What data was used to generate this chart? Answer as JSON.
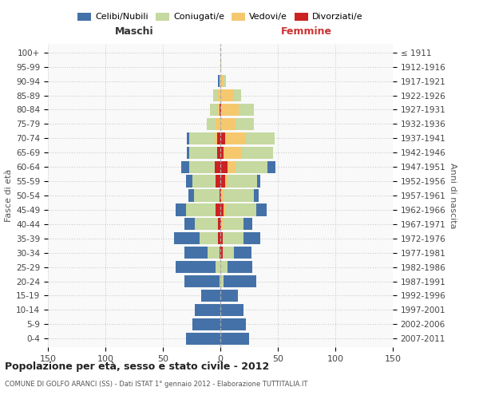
{
  "age_groups": [
    "0-4",
    "5-9",
    "10-14",
    "15-19",
    "20-24",
    "25-29",
    "30-34",
    "35-39",
    "40-44",
    "45-49",
    "50-54",
    "55-59",
    "60-64",
    "65-69",
    "70-74",
    "75-79",
    "80-84",
    "85-89",
    "90-94",
    "95-99",
    "100+"
  ],
  "birth_years": [
    "2007-2011",
    "2002-2006",
    "1997-2001",
    "1992-1996",
    "1987-1991",
    "1982-1986",
    "1977-1981",
    "1972-1976",
    "1967-1971",
    "1962-1966",
    "1957-1961",
    "1952-1956",
    "1947-1951",
    "1942-1946",
    "1937-1941",
    "1932-1936",
    "1927-1931",
    "1922-1926",
    "1917-1921",
    "1912-1916",
    "≤ 1911"
  ],
  "male": {
    "celibi": [
      30,
      24,
      22,
      17,
      30,
      35,
      20,
      22,
      9,
      9,
      5,
      6,
      7,
      2,
      2,
      0,
      0,
      0,
      1,
      0,
      0
    ],
    "coniugati": [
      0,
      0,
      0,
      0,
      1,
      4,
      10,
      16,
      20,
      26,
      22,
      20,
      22,
      24,
      22,
      8,
      6,
      4,
      1,
      0,
      0
    ],
    "vedovi": [
      0,
      0,
      0,
      0,
      0,
      0,
      0,
      0,
      0,
      0,
      0,
      0,
      0,
      0,
      2,
      4,
      2,
      2,
      0,
      0,
      0
    ],
    "divorziati": [
      0,
      0,
      0,
      0,
      0,
      0,
      1,
      2,
      2,
      4,
      1,
      4,
      5,
      3,
      3,
      0,
      1,
      0,
      0,
      0,
      0
    ]
  },
  "female": {
    "nubili": [
      25,
      22,
      20,
      15,
      28,
      22,
      15,
      15,
      8,
      9,
      4,
      3,
      7,
      0,
      0,
      0,
      0,
      0,
      0,
      0,
      0
    ],
    "coniugate": [
      0,
      0,
      0,
      0,
      3,
      6,
      10,
      18,
      18,
      26,
      26,
      26,
      28,
      28,
      25,
      16,
      13,
      7,
      2,
      1,
      0
    ],
    "vedove": [
      0,
      0,
      0,
      0,
      0,
      0,
      0,
      0,
      1,
      2,
      2,
      2,
      7,
      15,
      18,
      13,
      15,
      11,
      3,
      0,
      0
    ],
    "divorziate": [
      0,
      0,
      0,
      0,
      0,
      0,
      2,
      2,
      1,
      3,
      1,
      4,
      6,
      3,
      4,
      0,
      1,
      0,
      0,
      0,
      0
    ]
  },
  "colors": {
    "celibi": "#4472a8",
    "coniugati": "#c5d9a0",
    "vedovi": "#f5c86e",
    "divorziati": "#cc2222"
  },
  "title": "Popolazione per età, sesso e stato civile - 2012",
  "subtitle": "COMUNE DI GOLFO ARANCI (SS) - Dati ISTAT 1° gennaio 2012 - Elaborazione TUTTITALIA.IT",
  "xlim": 150,
  "xlabel_left": "Maschi",
  "xlabel_right": "Femmine",
  "ylabel_left": "Fasce di età",
  "ylabel_right": "Anni di nascita",
  "bg_color": "#f9f9f9"
}
